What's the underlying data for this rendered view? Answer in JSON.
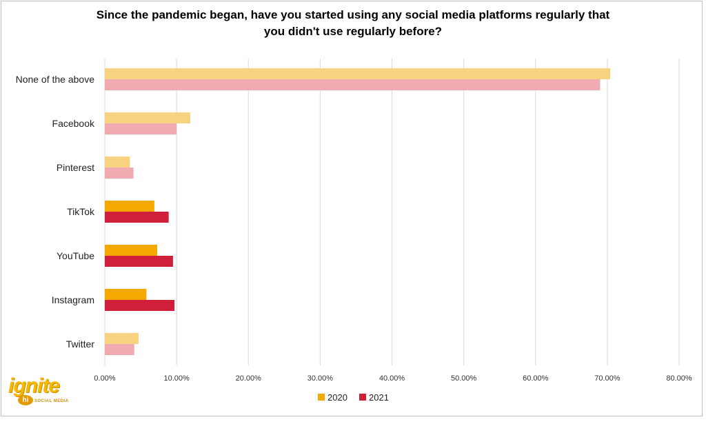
{
  "chart_data": {
    "type": "bar",
    "orientation": "horizontal",
    "title_lines": [
      "Since the pandemic began, have you started using any social media platforms regularly that",
      "you didn't use regularly before?"
    ],
    "categories": [
      "None of the above",
      "Facebook",
      "Pinterest",
      "TikTok",
      "YouTube",
      "Instagram",
      "Twitter"
    ],
    "highlighted_categories": [
      "TikTok",
      "YouTube",
      "Instagram"
    ],
    "series": [
      {
        "name": "2020",
        "values": [
          70.4,
          11.9,
          3.5,
          6.9,
          7.3,
          5.8,
          4.7
        ],
        "color": "#f5a800",
        "faded_color": "#f7d27f"
      },
      {
        "name": "2021",
        "values": [
          69.0,
          10.0,
          4.0,
          8.9,
          9.5,
          9.7,
          4.1
        ],
        "color": "#d01f3a",
        "faded_color": "#f0aab2"
      }
    ],
    "x_ticks": [
      "0.00%",
      "10.00%",
      "20.00%",
      "30.00%",
      "40.00%",
      "50.00%",
      "60.00%",
      "70.00%",
      "80.00%"
    ],
    "xlim": [
      0,
      80
    ],
    "grid": true,
    "legend_position": "bottom"
  },
  "logo": {
    "word": "ignite",
    "badge": "hi",
    "sub": "SOCIAL MEDIA"
  }
}
